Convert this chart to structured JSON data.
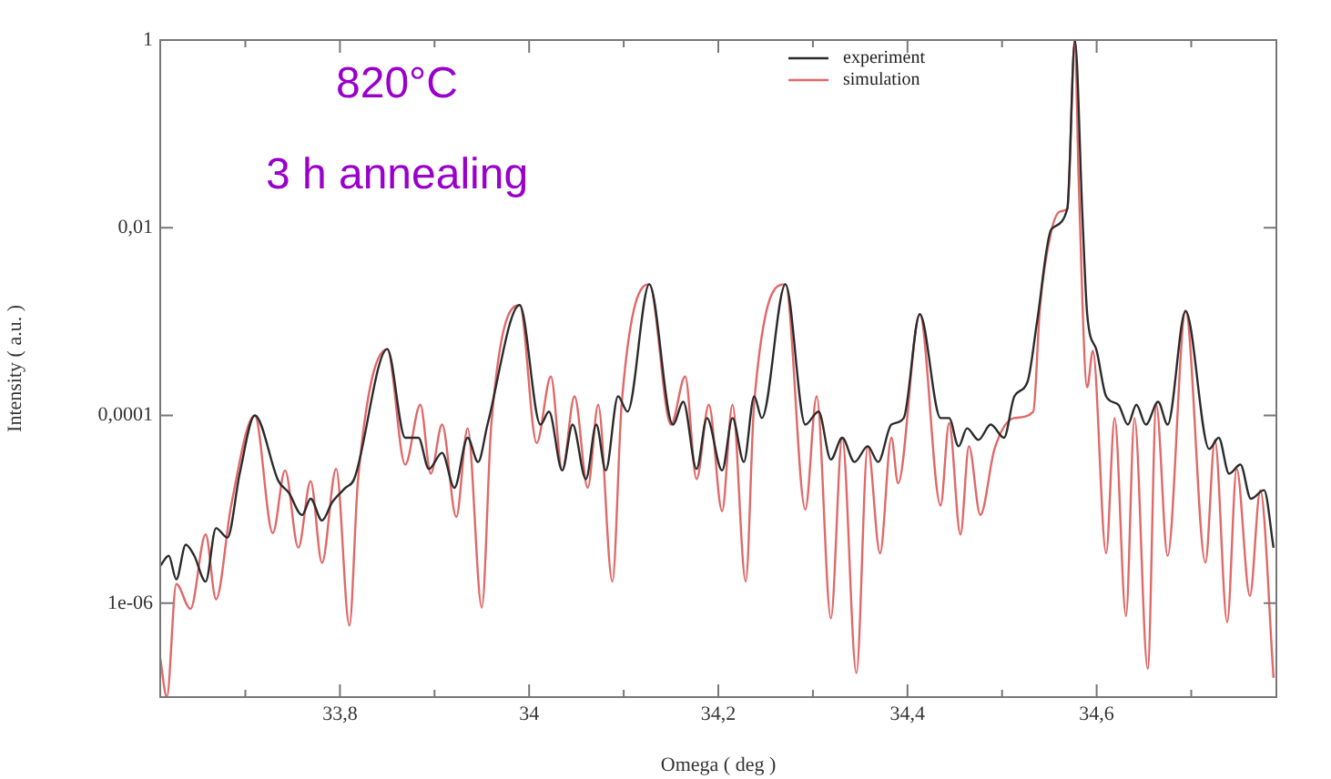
{
  "chart_data": {
    "type": "line",
    "xlabel": "Omega ( deg )",
    "ylabel": "Intensity ( a.u. )",
    "annotations": [
      "820°C",
      "3 h annealing"
    ],
    "xlim": [
      33.61,
      34.79
    ],
    "xticks": [
      {
        "value": 33.7,
        "label": null
      },
      {
        "value": 33.8,
        "label": "33,8"
      },
      {
        "value": 33.9,
        "label": null
      },
      34,
      {
        "value": 34.1,
        "label": null
      },
      {
        "value": 34.2,
        "label": "34,2"
      },
      {
        "value": 34.3,
        "label": null
      },
      {
        "value": 34.4,
        "label": "34,4"
      },
      {
        "value": 34.5,
        "label": null
      },
      {
        "value": 34.6,
        "label": "34,6"
      },
      {
        "value": 34.7,
        "label": null
      }
    ],
    "ylim": [
      1e-07,
      1
    ],
    "log": "y",
    "yticks": [
      {
        "value": 1e-06,
        "label": "1e-06"
      },
      {
        "value": 0.0001,
        "label": "0,0001"
      },
      {
        "value": 0.01,
        "label": "0,01"
      },
      1
    ],
    "grid": false,
    "legend": "top right",
    "marker": "none",
    "line_style": "solid",
    "series": [
      {
        "name": "experiment",
        "color": "#2b2b2b",
        "x": [
          33.61,
          33.619,
          33.627,
          33.637,
          33.646,
          33.658,
          33.669,
          33.681,
          33.694,
          33.71,
          33.735,
          33.746,
          33.76,
          33.769,
          33.781,
          33.792,
          33.806,
          33.815,
          33.85,
          33.869,
          33.883,
          33.894,
          33.908,
          33.921,
          33.935,
          33.946,
          33.956,
          33.99,
          34.012,
          34.021,
          34.035,
          34.046,
          34.06,
          34.071,
          34.081,
          34.094,
          34.104,
          34.127,
          34.152,
          34.163,
          34.177,
          34.188,
          34.204,
          34.215,
          34.227,
          34.238,
          34.246,
          34.271,
          34.292,
          34.306,
          34.319,
          34.331,
          34.344,
          34.358,
          34.369,
          34.383,
          34.396,
          34.413,
          34.435,
          34.444,
          34.454,
          34.463,
          34.475,
          34.488,
          34.502,
          34.513,
          34.527,
          34.537,
          34.552,
          34.569,
          34.577,
          34.585,
          34.59,
          34.6,
          34.61,
          34.623,
          34.633,
          34.642,
          34.652,
          34.665,
          34.675,
          34.694,
          34.719,
          34.729,
          34.74,
          34.752,
          34.763,
          34.777,
          34.787
        ],
        "values": [
          2.5e-06,
          3.2e-06,
          1.8e-06,
          4.2e-06,
          3.2e-06,
          1.7e-06,
          6.3e-06,
          5e-06,
          2.4e-05,
          0.0001,
          2e-05,
          1.5e-05,
          8.7e-06,
          1.3e-05,
          7.6e-06,
          1.2e-05,
          1.7e-05,
          2.1e-05,
          0.00051,
          5.8e-05,
          5.8e-05,
          2.7e-05,
          4e-05,
          1.7e-05,
          5.8e-05,
          3.2e-05,
          8e-05,
          0.0015,
          8e-05,
          0.00011,
          2.6e-05,
          8e-05,
          2.1e-05,
          8e-05,
          2.6e-05,
          0.00016,
          0.00011,
          0.0025,
          8e-05,
          0.00014,
          2.7e-05,
          9.4e-05,
          2.6e-05,
          9.4e-05,
          3.2e-05,
          0.00016,
          9.4e-05,
          0.0025,
          8e-05,
          0.00011,
          3.4e-05,
          5.8e-05,
          3.2e-05,
          4.7e-05,
          3.2e-05,
          8e-05,
          9.4e-05,
          0.0012,
          9.4e-05,
          9.4e-05,
          4.7e-05,
          7.3e-05,
          5.5e-05,
          8e-05,
          5.8e-05,
          0.00016,
          0.00023,
          0.001,
          0.0096,
          0.016,
          1,
          0.013,
          0.0012,
          0.00049,
          0.00016,
          0.00013,
          8e-05,
          0.00013,
          8e-05,
          0.00014,
          8e-05,
          0.0013,
          4.4e-05,
          5.8e-05,
          2.4e-05,
          3e-05,
          1.3e-05,
          1.6e-05,
          3.9e-06
        ]
      },
      {
        "name": "simulation",
        "color": "#e06868",
        "x": [
          33.61,
          33.617,
          33.627,
          33.642,
          33.658,
          33.669,
          33.685,
          33.71,
          33.729,
          33.742,
          33.756,
          33.769,
          33.781,
          33.796,
          33.81,
          33.819,
          33.85,
          33.869,
          33.885,
          33.896,
          33.908,
          33.923,
          33.935,
          33.95,
          33.96,
          33.99,
          34.008,
          34.023,
          34.035,
          34.048,
          34.062,
          34.073,
          34.088,
          34.098,
          34.127,
          34.15,
          34.165,
          34.177,
          34.19,
          34.204,
          34.215,
          34.229,
          34.238,
          34.271,
          34.292,
          34.304,
          34.319,
          34.331,
          34.346,
          34.358,
          34.371,
          34.383,
          34.39,
          34.413,
          34.435,
          34.444,
          34.456,
          34.465,
          34.477,
          34.492,
          34.513,
          34.533,
          34.54,
          34.552,
          34.562,
          34.569,
          34.577,
          34.581,
          34.59,
          34.596,
          34.61,
          34.619,
          34.631,
          34.64,
          34.654,
          34.663,
          34.675,
          34.694,
          34.715,
          34.725,
          34.738,
          34.748,
          34.762,
          34.773,
          34.787
        ],
        "values": [
          2.6e-07,
          1e-07,
          1.6e-06,
          8.7e-07,
          5.4e-06,
          1.1e-06,
          1.1e-05,
          0.0001,
          5.6e-06,
          2.6e-05,
          3.9e-06,
          2e-05,
          2.7e-06,
          2.7e-05,
          5.8e-07,
          2e-05,
          0.00051,
          3e-05,
          0.00013,
          2.4e-05,
          8e-05,
          8.3e-06,
          7.3e-05,
          9e-07,
          8e-05,
          0.0015,
          5.1e-05,
          0.00026,
          2.6e-05,
          0.00016,
          1.7e-05,
          0.00013,
          1.7e-06,
          0.00014,
          0.0025,
          8e-05,
          0.00026,
          2.1e-05,
          0.00013,
          9.6e-06,
          0.00013,
          1.7e-06,
          0.00014,
          0.0025,
          1e-05,
          0.00016,
          6.9e-07,
          5.8e-05,
          1.8e-07,
          4.7e-05,
          3.4e-06,
          5.8e-05,
          1.9e-05,
          0.0012,
          1.1e-05,
          8.3e-05,
          5.4e-06,
          4.7e-05,
          8.7e-06,
          4.4e-05,
          9.4e-05,
          0.00011,
          0.0014,
          0.0092,
          0.015,
          0.016,
          1,
          0.032,
          0.0002,
          0.00049,
          3.4e-06,
          9.4e-05,
          7.3e-07,
          9.4e-05,
          2e-07,
          0.00013,
          3.2e-06,
          0.0013,
          2.7e-06,
          5.5e-05,
          6.3e-07,
          2.7e-05,
          1.2e-06,
          1.6e-05,
          1.6e-07
        ]
      }
    ]
  }
}
